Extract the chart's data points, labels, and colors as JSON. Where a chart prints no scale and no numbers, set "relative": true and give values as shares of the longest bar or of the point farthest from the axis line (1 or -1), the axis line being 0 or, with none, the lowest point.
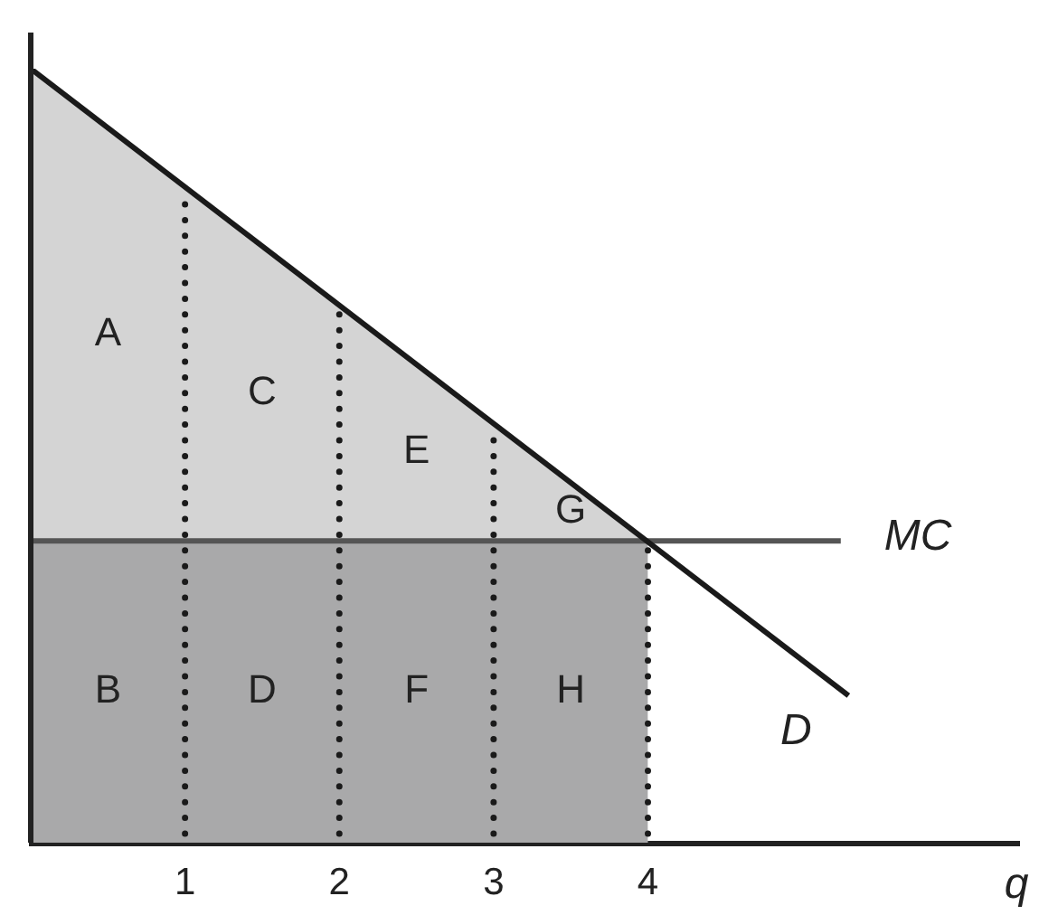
{
  "chart_data": {
    "type": "line",
    "relative": true,
    "xlabel": "q",
    "xlim": [
      0,
      6.4
    ],
    "xticks": [
      1,
      2,
      3,
      4
    ],
    "series": [
      {
        "type": "area",
        "color": "#d4d4d4",
        "x": [
          0,
          4
        ],
        "values": [
          1,
          0.39
        ]
      },
      {
        "type": "area",
        "color": "#a9a9aa",
        "x": [
          0,
          4
        ],
        "values": [
          0.39,
          0.39
        ]
      },
      {
        "name": "MC",
        "color": "#555555",
        "x": [
          0,
          5.25
        ],
        "values": [
          0.39,
          0.39
        ]
      },
      {
        "name": "D",
        "color": "#1a1a1a",
        "x": [
          0,
          5.3
        ],
        "values": [
          1,
          0.19
        ]
      }
    ],
    "ref_lines": [
      {
        "axis": "x",
        "value": 1,
        "color": "#1a1a1a",
        "line_style": "dotted"
      },
      {
        "axis": "x",
        "value": 2,
        "color": "#1a1a1a",
        "line_style": "dotted"
      },
      {
        "axis": "x",
        "value": 3,
        "color": "#1a1a1a",
        "line_style": "dotted"
      },
      {
        "axis": "x",
        "value": 4,
        "color": "#1a1a1a",
        "line_style": "dotted"
      }
    ],
    "annotations": [
      "A",
      "B",
      "C",
      "D",
      "E",
      "F",
      "G",
      "H"
    ]
  }
}
